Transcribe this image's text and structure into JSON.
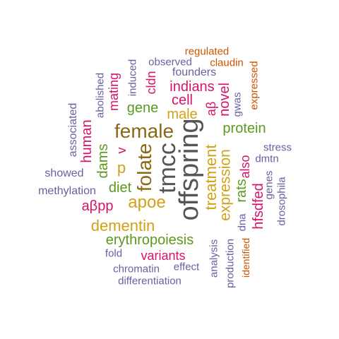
{
  "palette": {
    "brown": "#8B6914",
    "gray": "#555555",
    "orange": "#D4A017",
    "green": "#5B9A1E",
    "magenta": "#D6136A",
    "purple": "#6B5FA0",
    "rust": "#CC5500"
  },
  "words": [
    {
      "text": "offspring",
      "color": "gray"
    },
    {
      "text": "tmcc",
      "color": "gray"
    },
    {
      "text": "female",
      "color": "brown"
    },
    {
      "text": "folate",
      "color": "brown"
    },
    {
      "text": "treatment",
      "color": "orange"
    },
    {
      "text": "expression",
      "color": "orange"
    },
    {
      "text": "apoe",
      "color": "orange"
    },
    {
      "text": "dementin",
      "color": "orange"
    },
    {
      "text": "erythropoiesis",
      "color": "green"
    },
    {
      "text": "male",
      "color": "orange"
    },
    {
      "text": "protein",
      "color": "green"
    },
    {
      "text": "p",
      "color": "orange"
    },
    {
      "text": "v",
      "color": "magenta"
    },
    {
      "text": "gene",
      "color": "green"
    },
    {
      "text": "cell",
      "color": "magenta"
    },
    {
      "text": "indians",
      "color": "magenta"
    },
    {
      "text": "diet",
      "color": "green"
    },
    {
      "text": "dams",
      "color": "green"
    },
    {
      "text": "human",
      "color": "magenta"
    },
    {
      "text": "aβpp",
      "color": "magenta"
    },
    {
      "text": "variants",
      "color": "magenta"
    },
    {
      "text": "rats",
      "color": "green"
    },
    {
      "text": "hfsdfed",
      "color": "magenta"
    },
    {
      "text": "also",
      "color": "magenta"
    },
    {
      "text": "novel",
      "color": "magenta"
    },
    {
      "text": "aβ",
      "color": "magenta"
    },
    {
      "text": "cldn",
      "color": "magenta"
    },
    {
      "text": "mating",
      "color": "magenta"
    },
    {
      "text": "founders",
      "color": "purple"
    },
    {
      "text": "observed",
      "color": "purple"
    },
    {
      "text": "regulated",
      "color": "rust"
    },
    {
      "text": "claudin",
      "color": "rust"
    },
    {
      "text": "expressed",
      "color": "rust"
    },
    {
      "text": "gwas",
      "color": "purple"
    },
    {
      "text": "induced",
      "color": "purple"
    },
    {
      "text": "abolished",
      "color": "purple"
    },
    {
      "text": "associated",
      "color": "purple"
    },
    {
      "text": "showed",
      "color": "purple"
    },
    {
      "text": "methylation",
      "color": "purple"
    },
    {
      "text": "stress",
      "color": "purple"
    },
    {
      "text": "dmtn",
      "color": "purple"
    },
    {
      "text": "genes",
      "color": "purple"
    },
    {
      "text": "drosophila",
      "color": "purple"
    },
    {
      "text": "dna",
      "color": "purple"
    },
    {
      "text": "identified",
      "color": "rust"
    },
    {
      "text": "production",
      "color": "purple"
    },
    {
      "text": "analysis",
      "color": "purple"
    },
    {
      "text": "fold",
      "color": "purple"
    },
    {
      "text": "effect",
      "color": "purple"
    },
    {
      "text": "chromatin",
      "color": "purple"
    },
    {
      "text": "differentiation",
      "color": "purple"
    }
  ]
}
